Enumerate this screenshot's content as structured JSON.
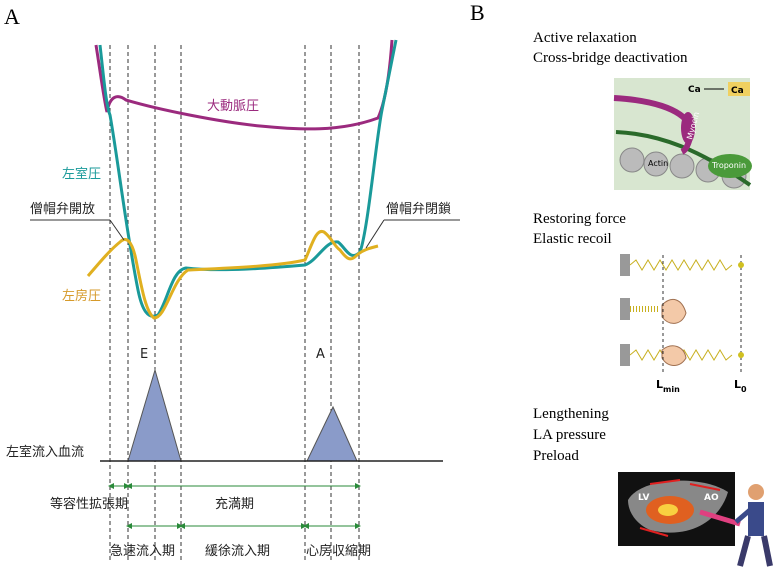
{
  "panel_a": {
    "label": "A",
    "aortic_pressure": "大動脈圧",
    "lv_pressure": "左室圧",
    "mitral_open": "僧帽弁開放",
    "mitral_close": "僧帽弁閉鎖",
    "la_pressure": "左房圧",
    "e_wave": "E",
    "a_wave": "A",
    "lv_inflow": "左室流入血流",
    "phases": {
      "isovolumic": "等容性拡張期",
      "filling": "充満期",
      "rapid": "急速流入期",
      "slow": "緩徐流入期",
      "atrial": "心房収縮期"
    }
  },
  "panel_b": {
    "label": "B",
    "relaxation": {
      "lines": [
        "Active relaxation",
        "Cross-bridge deactivation"
      ],
      "ca_left": "Ca",
      "ca_right": "Ca",
      "myosin": "Myocin",
      "actin": "Actin",
      "troponin": "Troponin"
    },
    "restoring": {
      "lines": [
        "Restoring force",
        "Elastic recoil"
      ],
      "l_min": {
        "main": "L",
        "sub": "min"
      },
      "l_0": {
        "main": "L",
        "sub": "0"
      }
    },
    "lengthening": {
      "lines": [
        "Lengthening",
        "LA pressure",
        "Preload"
      ],
      "lv": "LV",
      "ao": "AO"
    }
  }
}
